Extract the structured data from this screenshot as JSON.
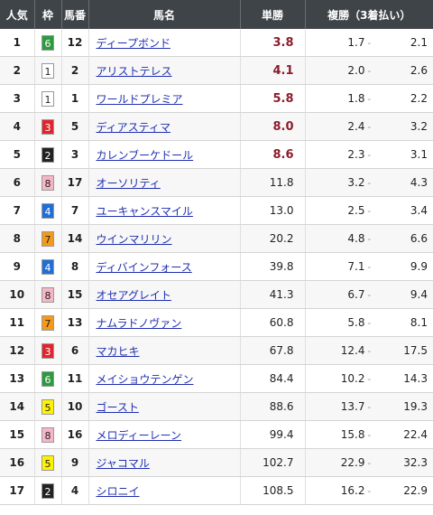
{
  "header": {
    "rank": "人気",
    "waku": "枠",
    "umaban": "馬番",
    "name": "馬名",
    "win": "単勝",
    "place": "複勝（3着払い）"
  },
  "waku_colors": {
    "1": {
      "bg": "#ffffff",
      "fg": "#222222"
    },
    "2": {
      "bg": "#222222",
      "fg": "#ffffff"
    },
    "3": {
      "bg": "#e0262c",
      "fg": "#ffffff"
    },
    "4": {
      "bg": "#1f6fd4",
      "fg": "#ffffff"
    },
    "5": {
      "bg": "#fff200",
      "fg": "#222222"
    },
    "6": {
      "bg": "#2c9a3e",
      "fg": "#ffffff"
    },
    "7": {
      "bg": "#f49a1a",
      "fg": "#222222"
    },
    "8": {
      "bg": "#f6b6c8",
      "fg": "#222222"
    }
  },
  "separator": "-",
  "rows": [
    {
      "rank": "1",
      "waku": "6",
      "umaban": "12",
      "name": "ディープボンド",
      "win": "3.8",
      "hot": true,
      "place_low": "1.7",
      "place_high": "2.1"
    },
    {
      "rank": "2",
      "waku": "1",
      "umaban": "2",
      "name": "アリストテレス",
      "win": "4.1",
      "hot": true,
      "place_low": "2.0",
      "place_high": "2.6"
    },
    {
      "rank": "3",
      "waku": "1",
      "umaban": "1",
      "name": "ワールドプレミア",
      "win": "5.8",
      "hot": true,
      "place_low": "1.8",
      "place_high": "2.2"
    },
    {
      "rank": "4",
      "waku": "3",
      "umaban": "5",
      "name": "ディアスティマ",
      "win": "8.0",
      "hot": true,
      "place_low": "2.4",
      "place_high": "3.2"
    },
    {
      "rank": "5",
      "waku": "2",
      "umaban": "3",
      "name": "カレンブーケドール",
      "win": "8.6",
      "hot": true,
      "place_low": "2.3",
      "place_high": "3.1"
    },
    {
      "rank": "6",
      "waku": "8",
      "umaban": "17",
      "name": "オーソリティ",
      "win": "11.8",
      "hot": false,
      "place_low": "3.2",
      "place_high": "4.3"
    },
    {
      "rank": "7",
      "waku": "4",
      "umaban": "7",
      "name": "ユーキャンスマイル",
      "win": "13.0",
      "hot": false,
      "place_low": "2.5",
      "place_high": "3.4"
    },
    {
      "rank": "8",
      "waku": "7",
      "umaban": "14",
      "name": "ウインマリリン",
      "win": "20.2",
      "hot": false,
      "place_low": "4.8",
      "place_high": "6.6"
    },
    {
      "rank": "9",
      "waku": "4",
      "umaban": "8",
      "name": "ディバインフォース",
      "win": "39.8",
      "hot": false,
      "place_low": "7.1",
      "place_high": "9.9"
    },
    {
      "rank": "10",
      "waku": "8",
      "umaban": "15",
      "name": "オセアグレイト",
      "win": "41.3",
      "hot": false,
      "place_low": "6.7",
      "place_high": "9.4"
    },
    {
      "rank": "11",
      "waku": "7",
      "umaban": "13",
      "name": "ナムラドノヴァン",
      "win": "60.8",
      "hot": false,
      "place_low": "5.8",
      "place_high": "8.1"
    },
    {
      "rank": "12",
      "waku": "3",
      "umaban": "6",
      "name": "マカヒキ",
      "win": "67.8",
      "hot": false,
      "place_low": "12.4",
      "place_high": "17.5"
    },
    {
      "rank": "13",
      "waku": "6",
      "umaban": "11",
      "name": "メイショウテンゲン",
      "win": "84.4",
      "hot": false,
      "place_low": "10.2",
      "place_high": "14.3"
    },
    {
      "rank": "14",
      "waku": "5",
      "umaban": "10",
      "name": "ゴースト",
      "win": "88.6",
      "hot": false,
      "place_low": "13.7",
      "place_high": "19.3"
    },
    {
      "rank": "15",
      "waku": "8",
      "umaban": "16",
      "name": "メロディーレーン",
      "win": "99.4",
      "hot": false,
      "place_low": "15.8",
      "place_high": "22.4"
    },
    {
      "rank": "16",
      "waku": "5",
      "umaban": "9",
      "name": "ジャコマル",
      "win": "102.7",
      "hot": false,
      "place_low": "22.9",
      "place_high": "32.3"
    },
    {
      "rank": "17",
      "waku": "2",
      "umaban": "4",
      "name": "シロニイ",
      "win": "108.5",
      "hot": false,
      "place_low": "16.2",
      "place_high": "22.9"
    }
  ]
}
